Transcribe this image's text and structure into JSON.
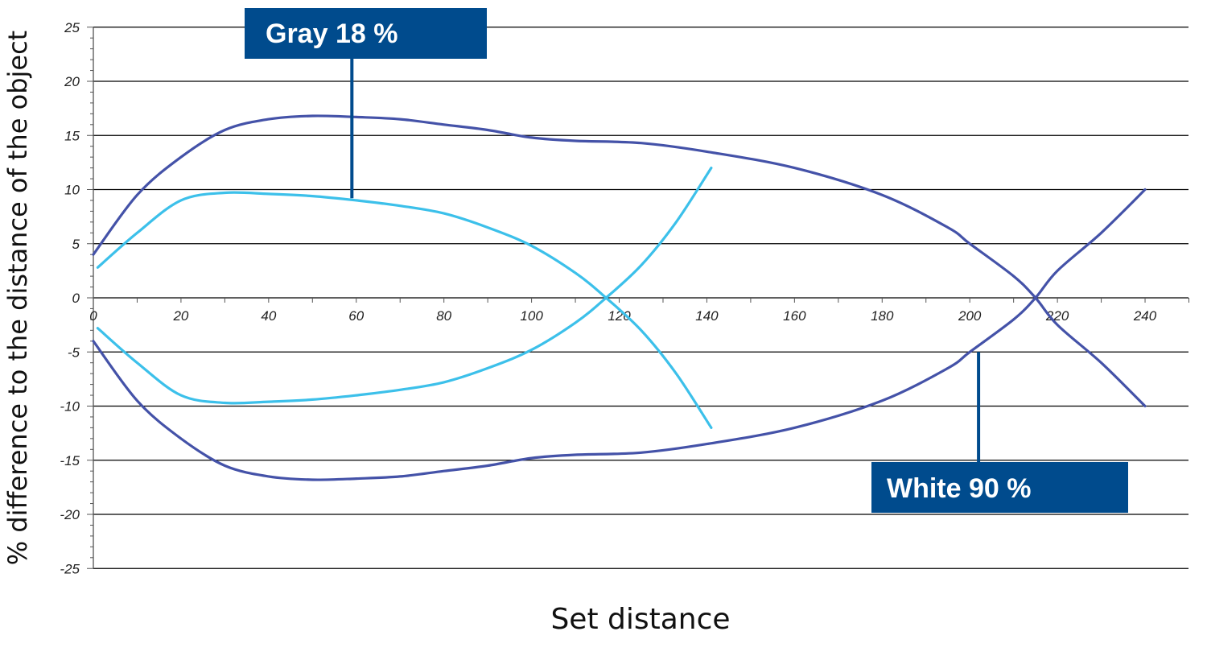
{
  "chart_data": {
    "type": "line",
    "title": "",
    "xlabel": "Set distance",
    "ylabel": "% difference to the distance of the object",
    "xlim": [
      0,
      250
    ],
    "ylim": [
      -25,
      25
    ],
    "x_ticks": [
      0,
      20,
      40,
      60,
      80,
      100,
      120,
      140,
      160,
      180,
      200,
      220,
      240
    ],
    "y_ticks": [
      25,
      20,
      15,
      10,
      5,
      0,
      -5,
      -10,
      -15,
      -20,
      -25
    ],
    "grid": "horizontal",
    "colors": {
      "white": "#4452a8",
      "gray": "#3cc0ea",
      "callout_bg": "#004b8d",
      "grid": "#000000"
    },
    "series": [
      {
        "name": "White 90 %",
        "role": "upper",
        "points": [
          [
            0,
            4
          ],
          [
            10,
            9.5
          ],
          [
            20,
            13
          ],
          [
            30,
            15.5
          ],
          [
            40,
            16.5
          ],
          [
            50,
            16.8
          ],
          [
            60,
            16.7
          ],
          [
            70,
            16.5
          ],
          [
            80,
            16
          ],
          [
            90,
            15.5
          ],
          [
            100,
            14.8
          ],
          [
            110,
            14.5
          ],
          [
            125,
            14.3
          ],
          [
            140,
            13.5
          ],
          [
            160,
            12
          ],
          [
            180,
            9.5
          ],
          [
            195,
            6.5
          ],
          [
            200,
            5
          ],
          [
            210,
            2
          ],
          [
            215,
            0
          ],
          [
            220,
            -2.5
          ],
          [
            230,
            -6
          ],
          [
            240,
            -10
          ]
        ]
      },
      {
        "name": "White 90 %",
        "role": "lower",
        "points": [
          [
            0,
            -4
          ],
          [
            10,
            -9.5
          ],
          [
            20,
            -13
          ],
          [
            30,
            -15.5
          ],
          [
            40,
            -16.5
          ],
          [
            50,
            -16.8
          ],
          [
            60,
            -16.7
          ],
          [
            70,
            -16.5
          ],
          [
            80,
            -16
          ],
          [
            90,
            -15.5
          ],
          [
            100,
            -14.8
          ],
          [
            110,
            -14.5
          ],
          [
            125,
            -14.3
          ],
          [
            140,
            -13.5
          ],
          [
            160,
            -12
          ],
          [
            180,
            -9.5
          ],
          [
            195,
            -6.5
          ],
          [
            200,
            -5
          ],
          [
            210,
            -2
          ],
          [
            215,
            0
          ],
          [
            220,
            2.5
          ],
          [
            230,
            6
          ],
          [
            240,
            10
          ]
        ]
      },
      {
        "name": "Gray 18 %",
        "role": "upper",
        "points": [
          [
            1,
            2.8
          ],
          [
            10,
            6
          ],
          [
            20,
            9
          ],
          [
            30,
            9.7
          ],
          [
            40,
            9.6
          ],
          [
            50,
            9.4
          ],
          [
            60,
            9
          ],
          [
            70,
            8.5
          ],
          [
            80,
            7.8
          ],
          [
            90,
            6.5
          ],
          [
            100,
            4.8
          ],
          [
            110,
            2.3
          ],
          [
            117,
            0
          ],
          [
            125,
            -3
          ],
          [
            133,
            -7
          ],
          [
            141,
            -12
          ]
        ]
      },
      {
        "name": "Gray 18 %",
        "role": "lower",
        "points": [
          [
            1,
            -2.8
          ],
          [
            10,
            -6
          ],
          [
            20,
            -9
          ],
          [
            30,
            -9.7
          ],
          [
            40,
            -9.6
          ],
          [
            50,
            -9.4
          ],
          [
            60,
            -9
          ],
          [
            70,
            -8.5
          ],
          [
            80,
            -7.8
          ],
          [
            90,
            -6.5
          ],
          [
            100,
            -4.8
          ],
          [
            110,
            -2.3
          ],
          [
            117,
            0
          ],
          [
            125,
            3
          ],
          [
            133,
            7
          ],
          [
            141,
            12
          ]
        ]
      }
    ],
    "annotations": [
      {
        "text": "Gray 18 %",
        "series": "Gray 18 %",
        "anchor": [
          59,
          9.2
        ]
      },
      {
        "text": "White 90 %",
        "series": "White 90 %",
        "anchor": [
          202,
          -5
        ]
      }
    ]
  }
}
